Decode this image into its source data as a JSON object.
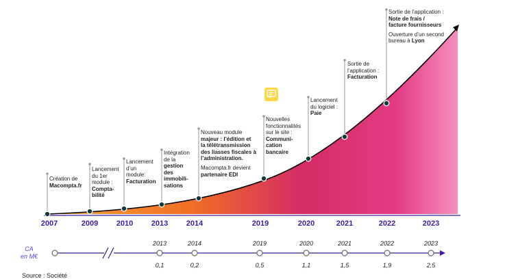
{
  "milestones": [
    {
      "year": "2007",
      "lines": [
        {
          "t": "Création de",
          "b": false
        },
        {
          "t": "Macompta.fr",
          "b": true
        }
      ]
    },
    {
      "year": "2009",
      "lines": [
        {
          "t": "Lancement",
          "b": false
        },
        {
          "t": "du 1er",
          "b": false
        },
        {
          "t": "module :",
          "b": false
        },
        {
          "t": "Compta-",
          "b": true
        },
        {
          "t": "bilité",
          "b": true
        }
      ]
    },
    {
      "year": "2010",
      "lines": [
        {
          "t": "Lancement",
          "b": false
        },
        {
          "t": "d’un",
          "b": false
        },
        {
          "t": "module:",
          "b": false
        },
        {
          "t": "Facturation",
          "b": true
        }
      ]
    },
    {
      "year": "2013",
      "lines": [
        {
          "t": "Intégration",
          "b": false
        },
        {
          "t": "de la",
          "b": false
        },
        {
          "t": "gestion",
          "b": true
        },
        {
          "t": "des",
          "b": true
        },
        {
          "t": "immobili-",
          "b": true
        },
        {
          "t": "sations",
          "b": true
        }
      ]
    },
    {
      "year": "2014",
      "lines": [
        {
          "t": "Nouveau module",
          "b": false
        },
        {
          "t": "majeur : l’édition et",
          "b": true
        },
        {
          "t": "la télétransmission",
          "b": true
        },
        {
          "t": "des liasses fiscales à",
          "b": true
        },
        {
          "t": "l’administration.",
          "b": true
        },
        {
          "t": "",
          "b": false,
          "gap": true
        },
        {
          "t": "Macompta.fr devient",
          "b": false
        },
        {
          "t": "partenaire EDI",
          "b": true
        }
      ]
    },
    {
      "year": "2019",
      "lines": [
        {
          "t": "Nouvelles",
          "b": false
        },
        {
          "t": "fonctionnalités",
          "b": false
        },
        {
          "t": "sur le site :",
          "b": false
        },
        {
          "t": "Communi-",
          "b": true
        },
        {
          "t": "cation",
          "b": true
        },
        {
          "t": "bancaire",
          "b": true
        }
      ]
    },
    {
      "year": "2020",
      "lines": [
        {
          "t": "Lancement",
          "b": false
        },
        {
          "t": "du logiciel :",
          "b": false
        },
        {
          "t": "Paie",
          "b": true
        }
      ]
    },
    {
      "year": "2022a",
      "lines": [
        {
          "t": "Sortie de",
          "b": false
        },
        {
          "t": "l’application :",
          "b": false
        },
        {
          "t": "Facturation",
          "b": true
        }
      ]
    },
    {
      "year": "2023",
      "lines": [
        {
          "t": "Sortie de l’application :",
          "b": false
        },
        {
          "t": "Note de frais /",
          "b": true
        },
        {
          "t": "facture fournisseurs",
          "b": true
        },
        {
          "t": "",
          "b": false,
          "gap": true
        },
        {
          "t": "Ouverture d’un second",
          "b": false
        },
        {
          "t": "bureau à Lyon",
          "b": false,
          "boldTail": "Lyon"
        }
      ]
    }
  ],
  "axis_years": [
    "2007",
    "2009",
    "2010",
    "2013",
    "2014",
    "2019",
    "2020",
    "2021",
    "2022",
    "2023"
  ],
  "ca": {
    "title_line1": "CA",
    "title_line2": "en M€",
    "years": [
      "2013",
      "2014",
      "2019",
      "2020",
      "2021",
      "2022",
      "2023"
    ],
    "values": [
      "0,1",
      "0,2",
      "0,5",
      "1,1",
      "1,5",
      "1,9",
      "2,5"
    ],
    "break_symbol": "//"
  },
  "source_label": "Source : Société",
  "colors": {
    "axis": "#3f1aa0",
    "gradient_start": "#f07a1a",
    "gradient_mid": "#d6206e",
    "gradient_end": "#f48ab6",
    "curve": "#000000",
    "node": "#123a3a",
    "icon": "#ffd84a"
  }
}
